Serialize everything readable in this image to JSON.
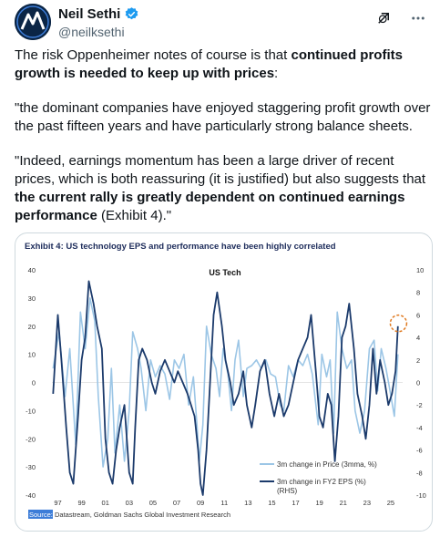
{
  "author": {
    "name": "Neil Sethi",
    "handle": "@neilksethi"
  },
  "icons": {
    "verified": "verified-badge-icon",
    "grok": "grok-icon",
    "more": "more-icon"
  },
  "tweet": {
    "p1_pre": "The risk Oppenheimer notes of course is that ",
    "p1_bold": "continued profits growth is needed to keep up with prices",
    "p1_post": ":",
    "p2": "\"the dominant companies have enjoyed staggering profit growth over the past fifteen years and have particularly strong balance sheets.",
    "p3_pre": "\"Indeed, earnings momentum has been a large driver of recent prices, which is both reassuring (it is justified) but also suggests that ",
    "p3_bold": "the current rally is greatly dependent on continued earnings performance",
    "p3_post": " (Exhibit 4).\""
  },
  "chart_data": {
    "type": "line",
    "title": "Exhibit 4: US technology EPS and performance have been highly correlated",
    "subtitle": "US Tech",
    "x_ticks": [
      "97",
      "99",
      "01",
      "03",
      "05",
      "07",
      "09",
      "11",
      "13",
      "15",
      "17",
      "19",
      "21",
      "23",
      "25"
    ],
    "x_range": [
      1996.5,
      2026.0
    ],
    "y_left": {
      "ticks": [
        "40",
        "30",
        "20",
        "10",
        "0",
        "-10",
        "-20",
        "-30",
        "-40"
      ],
      "range": [
        -40,
        40
      ]
    },
    "y_right": {
      "ticks": [
        "10",
        "8",
        "6",
        "4",
        "2",
        "0",
        "-2",
        "-4",
        "-6",
        "-8",
        "-10"
      ],
      "range": [
        -10,
        10
      ]
    },
    "series": [
      {
        "name": "3m change in Price (3mma, %)",
        "axis": "left",
        "color": "#9cc6e6",
        "points": [
          [
            1996.6,
            5
          ],
          [
            1997.1,
            18
          ],
          [
            1997.6,
            -5
          ],
          [
            1998.0,
            12
          ],
          [
            1998.5,
            -22
          ],
          [
            1998.9,
            25
          ],
          [
            1999.3,
            12
          ],
          [
            1999.7,
            30
          ],
          [
            2000.1,
            22
          ],
          [
            2000.4,
            -5
          ],
          [
            2000.8,
            -30
          ],
          [
            2001.2,
            -20
          ],
          [
            2001.5,
            5
          ],
          [
            2001.8,
            -25
          ],
          [
            2002.2,
            -8
          ],
          [
            2002.6,
            -28
          ],
          [
            2003.0,
            -10
          ],
          [
            2003.3,
            18
          ],
          [
            2003.7,
            12
          ],
          [
            2004.0,
            5
          ],
          [
            2004.4,
            -10
          ],
          [
            2004.8,
            8
          ],
          [
            2005.2,
            2
          ],
          [
            2005.6,
            6
          ],
          [
            2006.0,
            3
          ],
          [
            2006.4,
            -6
          ],
          [
            2006.8,
            8
          ],
          [
            2007.2,
            5
          ],
          [
            2007.6,
            10
          ],
          [
            2008.0,
            -8
          ],
          [
            2008.4,
            2
          ],
          [
            2008.7,
            -15
          ],
          [
            2008.9,
            -28
          ],
          [
            2009.2,
            -15
          ],
          [
            2009.5,
            20
          ],
          [
            2009.9,
            10
          ],
          [
            2010.3,
            5
          ],
          [
            2010.6,
            -5
          ],
          [
            2010.9,
            12
          ],
          [
            2011.3,
            3
          ],
          [
            2011.6,
            -10
          ],
          [
            2011.9,
            8
          ],
          [
            2012.2,
            15
          ],
          [
            2012.6,
            -5
          ],
          [
            2012.9,
            5
          ],
          [
            2013.3,
            6
          ],
          [
            2013.7,
            8
          ],
          [
            2014.1,
            5
          ],
          [
            2014.5,
            8
          ],
          [
            2014.9,
            3
          ],
          [
            2015.3,
            2
          ],
          [
            2015.7,
            -8
          ],
          [
            2016.0,
            -10
          ],
          [
            2016.4,
            6
          ],
          [
            2016.8,
            2
          ],
          [
            2017.2,
            8
          ],
          [
            2017.6,
            6
          ],
          [
            2018.0,
            10
          ],
          [
            2018.4,
            3
          ],
          [
            2018.9,
            -15
          ],
          [
            2019.2,
            10
          ],
          [
            2019.6,
            2
          ],
          [
            2019.9,
            8
          ],
          [
            2020.2,
            -18
          ],
          [
            2020.5,
            25
          ],
          [
            2020.9,
            12
          ],
          [
            2021.3,
            5
          ],
          [
            2021.7,
            8
          ],
          [
            2022.0,
            -10
          ],
          [
            2022.4,
            -18
          ],
          [
            2022.8,
            -10
          ],
          [
            2023.2,
            12
          ],
          [
            2023.6,
            15
          ],
          [
            2023.9,
            -3
          ],
          [
            2024.2,
            12
          ],
          [
            2024.6,
            5
          ],
          [
            2024.9,
            -2
          ],
          [
            2025.3,
            -12
          ],
          [
            2025.6,
            10
          ]
        ]
      },
      {
        "name": "3m change in FY2 EPS (%) (RHS)",
        "axis": "right",
        "color": "#1b3a6b",
        "points": [
          [
            1996.6,
            -1
          ],
          [
            1997.0,
            6
          ],
          [
            1997.3,
            2
          ],
          [
            1997.7,
            -4
          ],
          [
            1998.0,
            -8
          ],
          [
            1998.3,
            -9
          ],
          [
            1998.7,
            -3
          ],
          [
            1999.0,
            2
          ],
          [
            1999.3,
            4
          ],
          [
            1999.6,
            9
          ],
          [
            2000.0,
            7
          ],
          [
            2000.3,
            5
          ],
          [
            2000.7,
            3
          ],
          [
            2001.0,
            -5
          ],
          [
            2001.3,
            -8
          ],
          [
            2001.6,
            -9
          ],
          [
            2001.9,
            -6
          ],
          [
            2002.2,
            -4
          ],
          [
            2002.6,
            -2
          ],
          [
            2003.0,
            -8
          ],
          [
            2003.3,
            -9
          ],
          [
            2003.5,
            -4
          ],
          [
            2003.8,
            2
          ],
          [
            2004.1,
            3
          ],
          [
            2004.5,
            2
          ],
          [
            2004.9,
            0
          ],
          [
            2005.2,
            -1
          ],
          [
            2005.6,
            1
          ],
          [
            2006.0,
            2
          ],
          [
            2006.4,
            1
          ],
          [
            2006.8,
            0
          ],
          [
            2007.1,
            1
          ],
          [
            2007.5,
            0
          ],
          [
            2007.9,
            -1
          ],
          [
            2008.2,
            -2
          ],
          [
            2008.5,
            -3
          ],
          [
            2008.8,
            -6
          ],
          [
            2009.0,
            -9
          ],
          [
            2009.2,
            -10
          ],
          [
            2009.5,
            -6
          ],
          [
            2009.8,
            0
          ],
          [
            2010.1,
            6
          ],
          [
            2010.4,
            8
          ],
          [
            2010.8,
            5
          ],
          [
            2011.1,
            2
          ],
          [
            2011.5,
            0
          ],
          [
            2011.8,
            -2
          ],
          [
            2012.2,
            -1
          ],
          [
            2012.6,
            1
          ],
          [
            2012.9,
            -2
          ],
          [
            2013.3,
            -4
          ],
          [
            2013.6,
            -2
          ],
          [
            2014.0,
            1
          ],
          [
            2014.4,
            2
          ],
          [
            2014.8,
            -1
          ],
          [
            2015.2,
            -3
          ],
          [
            2015.6,
            -1
          ],
          [
            2016.0,
            -3
          ],
          [
            2016.4,
            -2
          ],
          [
            2016.8,
            0
          ],
          [
            2017.2,
            2
          ],
          [
            2017.6,
            3
          ],
          [
            2018.0,
            4
          ],
          [
            2018.3,
            6
          ],
          [
            2018.7,
            1
          ],
          [
            2019.0,
            -3
          ],
          [
            2019.3,
            -4
          ],
          [
            2019.7,
            -1
          ],
          [
            2020.0,
            -2
          ],
          [
            2020.3,
            -7
          ],
          [
            2020.6,
            -3
          ],
          [
            2020.9,
            4
          ],
          [
            2021.2,
            5
          ],
          [
            2021.5,
            7
          ],
          [
            2021.9,
            3
          ],
          [
            2022.2,
            -1
          ],
          [
            2022.6,
            -3
          ],
          [
            2022.9,
            -5
          ],
          [
            2023.2,
            -2
          ],
          [
            2023.5,
            3
          ],
          [
            2023.8,
            -1
          ],
          [
            2024.1,
            2
          ],
          [
            2024.5,
            0
          ],
          [
            2024.8,
            -2
          ],
          [
            2025.1,
            -1
          ],
          [
            2025.4,
            1
          ],
          [
            2025.6,
            5
          ]
        ]
      }
    ],
    "highlight": {
      "x": 2025.65,
      "y_left": 21,
      "color": "#e07b22"
    },
    "source_label": "Source:",
    "source_text": "Datastream, Goldman Sachs Global Investment Research"
  }
}
